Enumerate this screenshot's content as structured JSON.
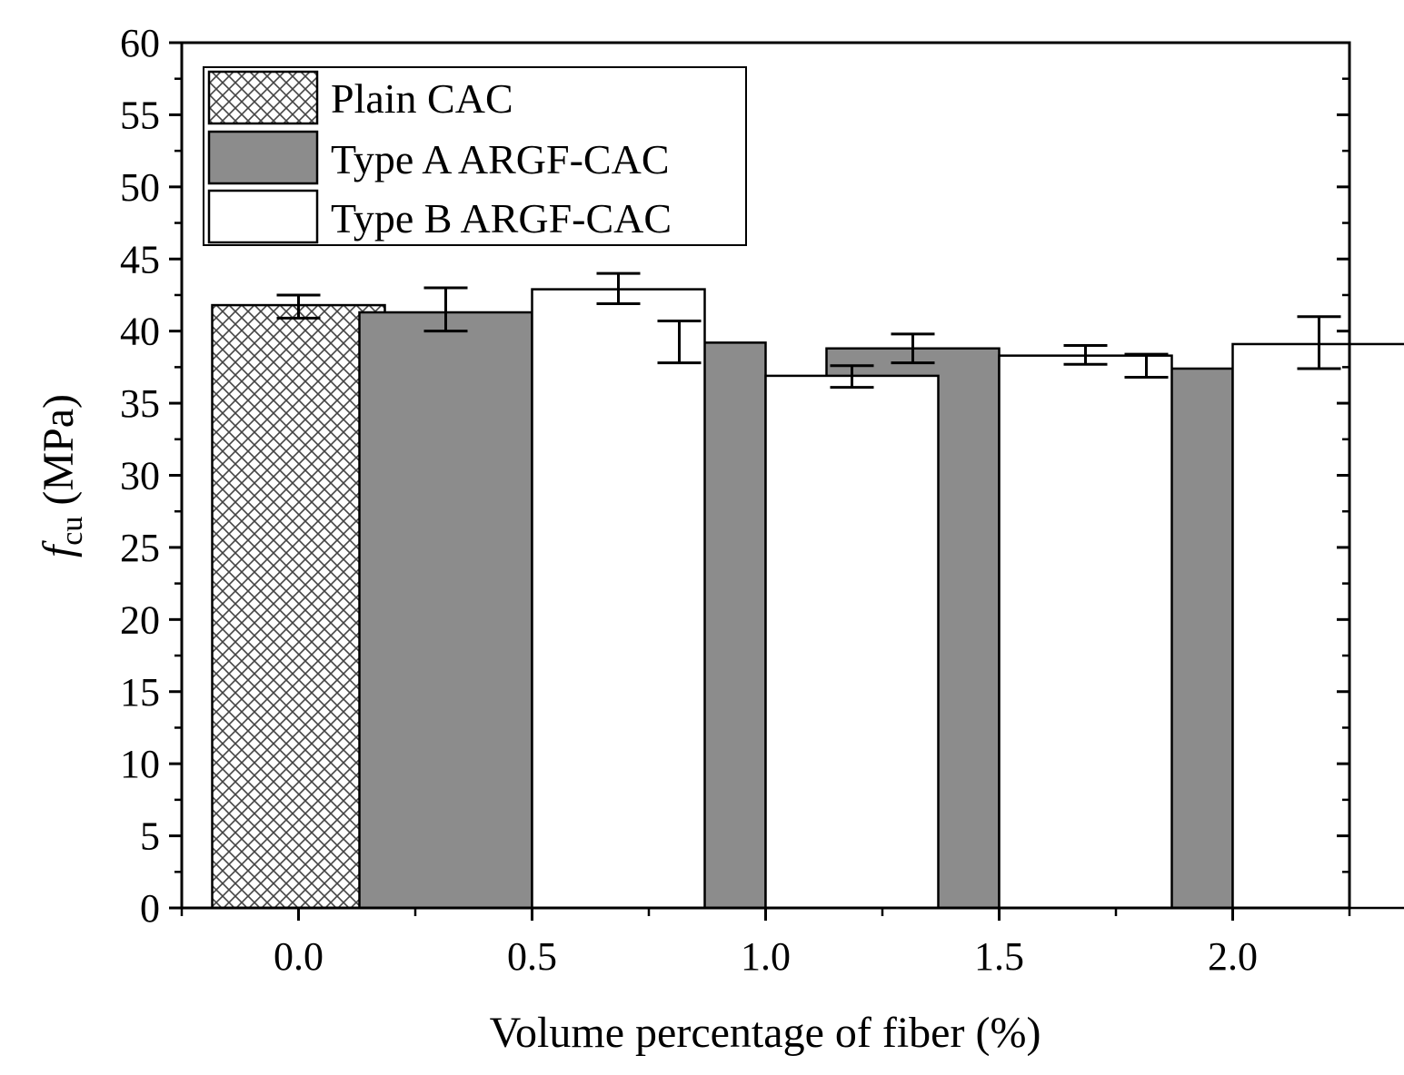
{
  "chart_data": {
    "type": "bar",
    "xlabel": "Volume percentage of fiber (%)",
    "ylabel_symbol": "f",
    "ylabel_subscript": "cu",
    "ylabel_unit": "(MPa)",
    "ylim": [
      0,
      60
    ],
    "yticks": [
      "0",
      "5",
      "10",
      "15",
      "20",
      "25",
      "30",
      "35",
      "40",
      "45",
      "50",
      "55",
      "60"
    ],
    "xlim": [
      -0.25,
      2.25
    ],
    "categories": [
      "0.0",
      "0.5",
      "1.0",
      "1.5",
      "2.0"
    ],
    "category_values": [
      0.0,
      0.5,
      1.0,
      1.5,
      2.0
    ],
    "legend_position": "top-left",
    "series": [
      {
        "name": "Plain CAC",
        "fill": "crosshatch",
        "color": "#ffffff",
        "points": [
          {
            "x": 0.0,
            "value": 41.8,
            "err_low": 40.9,
            "err_high": 42.5
          }
        ]
      },
      {
        "name": "Type A ARGF-CAC",
        "fill": "solid",
        "color": "#8c8c8c",
        "points": [
          {
            "x": 0.5,
            "value": 41.3,
            "err_low": 40.0,
            "err_high": 43.0
          },
          {
            "x": 1.0,
            "value": 39.2,
            "err_low": 37.8,
            "err_high": 40.7
          },
          {
            "x": 1.5,
            "value": 38.8,
            "err_low": 37.8,
            "err_high": 39.8
          },
          {
            "x": 2.0,
            "value": 37.4,
            "err_low": 36.8,
            "err_high": 38.4
          }
        ]
      },
      {
        "name": "Type B ARGF-CAC",
        "fill": "solid",
        "color": "#ffffff",
        "points": [
          {
            "x": 0.5,
            "value": 42.9,
            "err_low": 41.9,
            "err_high": 44.0
          },
          {
            "x": 1.0,
            "value": 36.9,
            "err_low": 36.1,
            "err_high": 37.6
          },
          {
            "x": 1.5,
            "value": 38.3,
            "err_low": 37.7,
            "err_high": 39.0
          },
          {
            "x": 2.0,
            "value": 39.1,
            "err_low": 37.4,
            "err_high": 41.0
          }
        ]
      }
    ]
  }
}
